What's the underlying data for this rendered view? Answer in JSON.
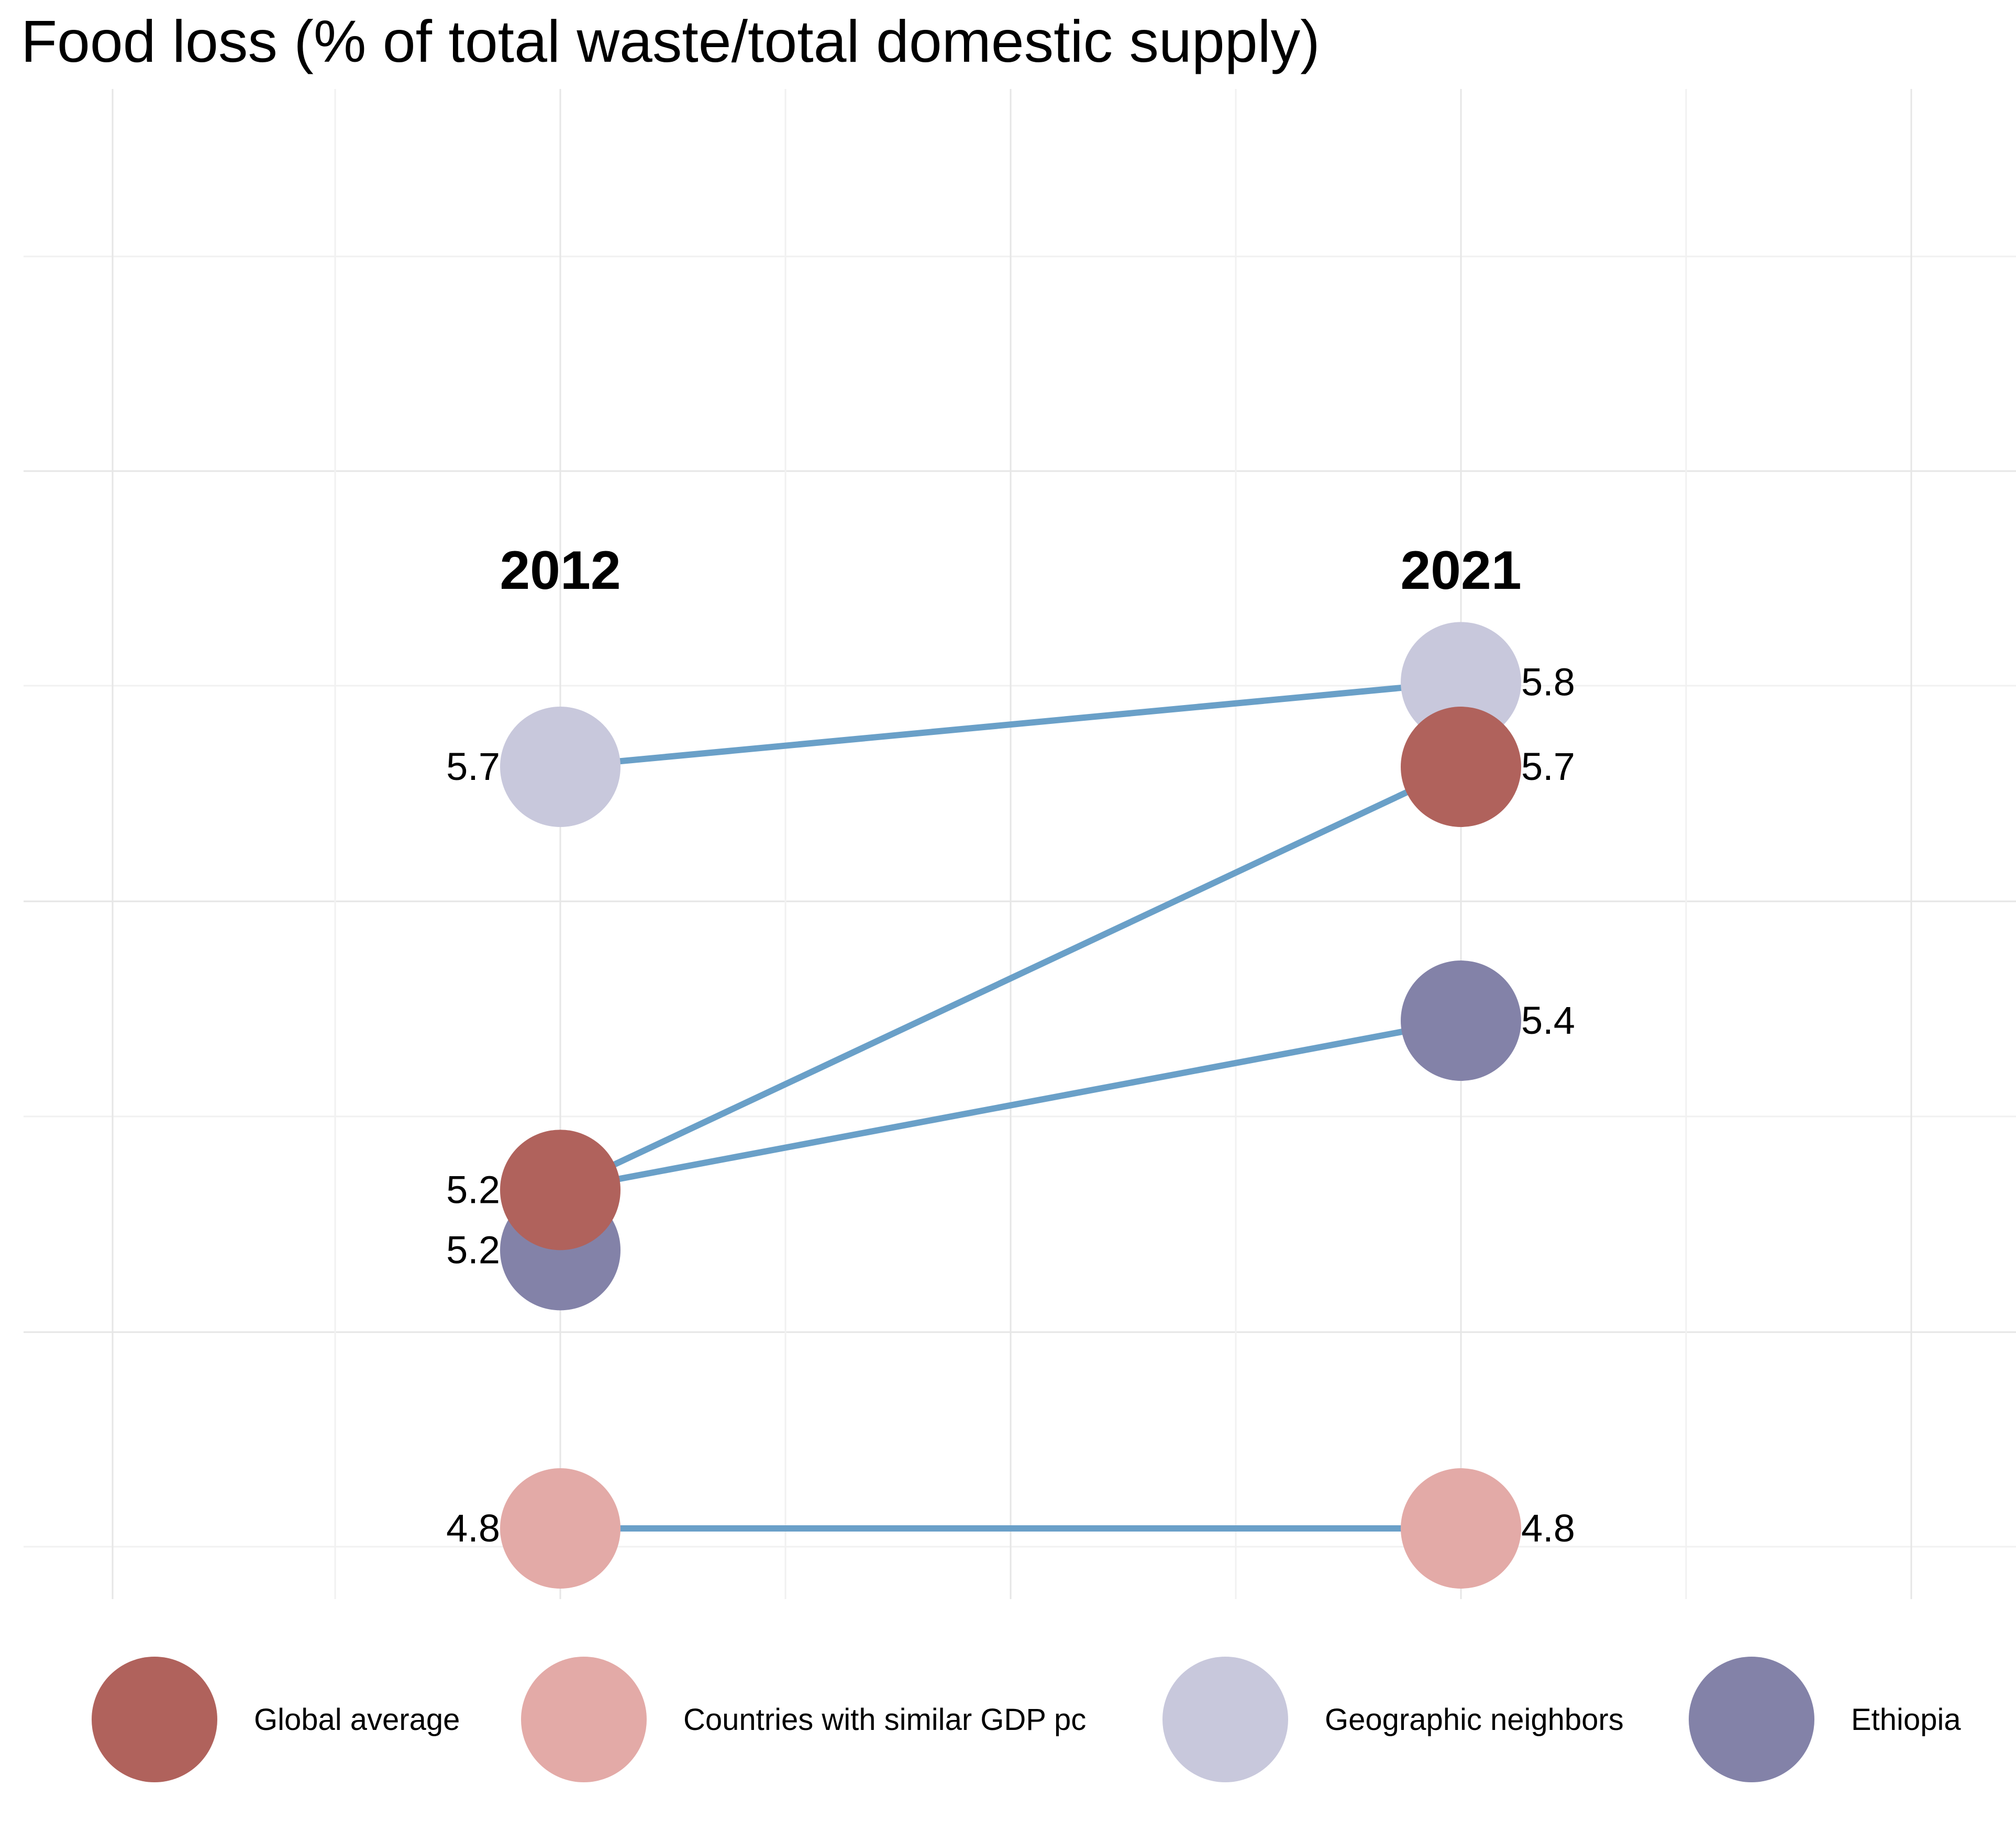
{
  "chart_data": {
    "type": "line",
    "title": "Food loss (% of total waste/total domestic supply)",
    "xlabel": "",
    "ylabel": "",
    "x": [
      "2012",
      "2021"
    ],
    "grid": true,
    "legend_position": "bottom",
    "line_color": "#6aa0c8",
    "series": [
      {
        "name": "Global average",
        "color": "#b0625c",
        "values": [
          5.2,
          5.7
        ],
        "labels": [
          "5.2",
          "5.7"
        ]
      },
      {
        "name": "Countries with similar GDP pc",
        "color": "#e3aaa7",
        "values": [
          4.8,
          4.8
        ],
        "labels": [
          "4.8",
          "4.8"
        ]
      },
      {
        "name": "Geographic neighbors",
        "color": "#c8c8dc",
        "values": [
          5.7,
          5.8
        ],
        "labels": [
          "5.7",
          "5.8"
        ]
      },
      {
        "name": "Ethiopia",
        "color": "#8382a8",
        "values": [
          5.2,
          5.4
        ],
        "labels": [
          "5.2",
          "5.4"
        ]
      }
    ]
  }
}
